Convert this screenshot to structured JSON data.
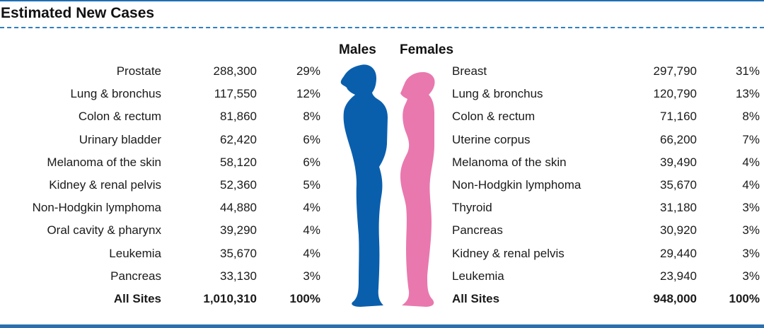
{
  "title": "Estimated New Cases",
  "chart_data": {
    "type": "table",
    "groups": [
      "Males",
      "Females"
    ],
    "columns": [
      "site",
      "cases",
      "percent"
    ],
    "males": [
      {
        "site": "Prostate",
        "cases": "288,300",
        "pct": "29%"
      },
      {
        "site": "Lung & bronchus",
        "cases": "117,550",
        "pct": "12%"
      },
      {
        "site": "Colon & rectum",
        "cases": "81,860",
        "pct": "8%"
      },
      {
        "site": "Urinary bladder",
        "cases": "62,420",
        "pct": "6%"
      },
      {
        "site": "Melanoma of the skin",
        "cases": "58,120",
        "pct": "6%"
      },
      {
        "site": "Kidney & renal pelvis",
        "cases": "52,360",
        "pct": "5%"
      },
      {
        "site": "Non-Hodgkin lymphoma",
        "cases": "44,880",
        "pct": "4%"
      },
      {
        "site": "Oral cavity & pharynx",
        "cases": "39,290",
        "pct": "4%"
      },
      {
        "site": "Leukemia",
        "cases": "35,670",
        "pct": "4%"
      },
      {
        "site": "Pancreas",
        "cases": "33,130",
        "pct": "3%"
      }
    ],
    "males_total": {
      "site": "All Sites",
      "cases": "1,010,310",
      "pct": "100%"
    },
    "females": [
      {
        "site": "Breast",
        "cases": "297,790",
        "pct": "31%"
      },
      {
        "site": "Lung & bronchus",
        "cases": "120,790",
        "pct": "13%"
      },
      {
        "site": "Colon & rectum",
        "cases": "71,160",
        "pct": "8%"
      },
      {
        "site": "Uterine corpus",
        "cases": "66,200",
        "pct": "7%"
      },
      {
        "site": "Melanoma of the skin",
        "cases": "39,490",
        "pct": "4%"
      },
      {
        "site": "Non-Hodgkin lymphoma",
        "cases": "35,670",
        "pct": "4%"
      },
      {
        "site": "Thyroid",
        "cases": "31,180",
        "pct": "3%"
      },
      {
        "site": "Pancreas",
        "cases": "30,920",
        "pct": "3%"
      },
      {
        "site": "Kidney & renal pelvis",
        "cases": "29,440",
        "pct": "3%"
      },
      {
        "site": "Leukemia",
        "cases": "23,940",
        "pct": "3%"
      }
    ],
    "females_total": {
      "site": "All Sites",
      "cases": "948,000",
      "pct": "100%"
    }
  },
  "colors": {
    "male_figure": "#0a5fad",
    "female_figure": "#e978ae",
    "rule": "#2f7fc1"
  },
  "icons": {
    "male": "male-silhouette-icon",
    "female": "female-silhouette-icon"
  }
}
